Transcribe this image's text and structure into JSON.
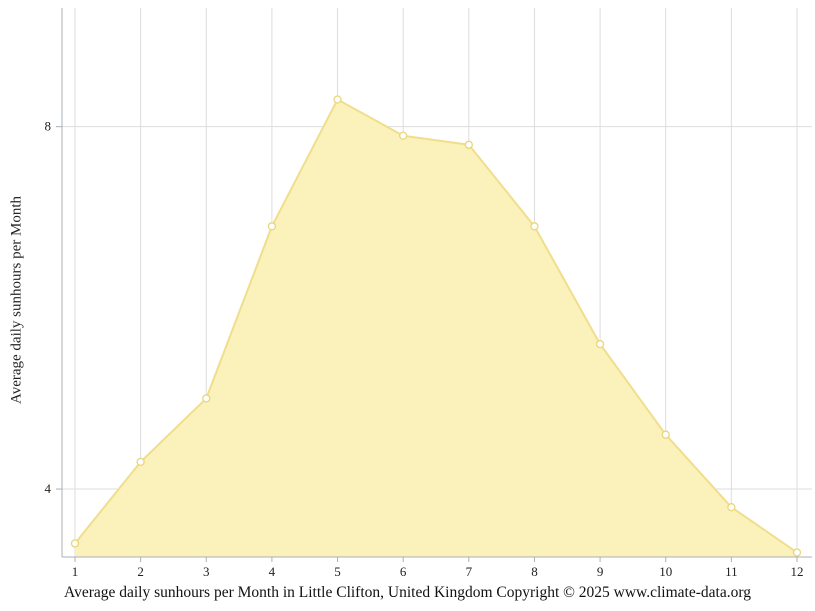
{
  "chart_data": {
    "type": "area",
    "x": [
      1,
      2,
      3,
      4,
      5,
      6,
      7,
      8,
      9,
      10,
      11,
      12
    ],
    "values": [
      3.4,
      4.3,
      5.0,
      6.9,
      8.3,
      7.9,
      7.8,
      6.9,
      5.6,
      4.6,
      3.8,
      3.3
    ],
    "title": "Average daily sunhours per Month in Little Clifton, United Kingdom Copyright © 2025 www.climate-data.org",
    "xlabel": "",
    "ylabel": "Average daily sunhours per Month",
    "xlim": [
      1,
      12
    ],
    "ylim": [
      3.25,
      9.31
    ],
    "xticks": [
      1,
      2,
      3,
      4,
      5,
      6,
      7,
      8,
      9,
      10,
      11,
      12
    ],
    "yticks": [
      4,
      8
    ],
    "grid": true,
    "legend": false,
    "colors": {
      "area_fill": "#FAF2BA",
      "line": "#F0DE8C",
      "marker_fill": "#FFFFFF",
      "marker_stroke": "#E9D678",
      "grid": "#DDDDDD",
      "axis": "#AAB0B6",
      "text": "#222222"
    }
  }
}
